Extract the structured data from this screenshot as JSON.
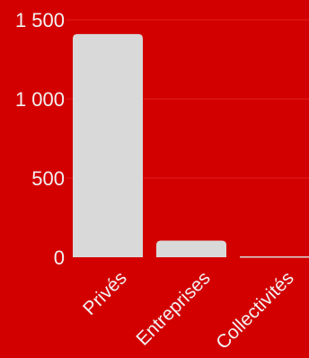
{
  "chart_data": {
    "type": "bar",
    "title": "",
    "xlabel": "",
    "ylabel": "",
    "categories": [
      "Privés",
      "Entreprises",
      "Collectivités"
    ],
    "values": [
      1410,
      105,
      0
    ],
    "ylim": [
      0,
      1500
    ],
    "yticks": [
      0,
      500,
      1000,
      1500
    ],
    "ytick_labels": [
      "0",
      "500",
      "1 000",
      "1 500"
    ],
    "grid": true,
    "legend": "none",
    "colors": {
      "background": "#d30000",
      "bar": "#d9d9d9",
      "grid": "#e02020",
      "text": "#f2f2f2"
    }
  }
}
